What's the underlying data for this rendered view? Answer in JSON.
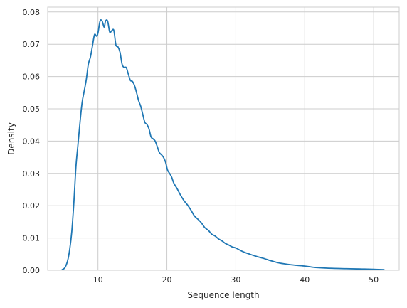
{
  "chart_data": {
    "type": "line",
    "title": "",
    "xlabel": "Sequence length",
    "ylabel": "Density",
    "xlim": [
      2.7,
      53.7
    ],
    "ylim": [
      0,
      0.0815
    ],
    "x_ticks": [
      10,
      20,
      30,
      40,
      50
    ],
    "x_tick_labels": [
      "10",
      "20",
      "30",
      "40",
      "50"
    ],
    "y_ticks": [
      0.0,
      0.01,
      0.02,
      0.03,
      0.04,
      0.05,
      0.06,
      0.07,
      0.08
    ],
    "y_tick_labels": [
      "0.00",
      "0.01",
      "0.02",
      "0.03",
      "0.04",
      "0.05",
      "0.06",
      "0.07",
      "0.08"
    ],
    "grid": true,
    "line_color": "#1f77b4",
    "grid_color": "#cccccc",
    "series": [
      {
        "x": [
          4.8,
          5.2,
          5.6,
          5.9,
          6.2,
          6.5,
          6.8,
          7.1,
          7.4,
          7.7,
          8.0,
          8.3,
          8.6,
          8.9,
          9.2,
          9.5,
          9.8,
          10.0,
          10.3,
          10.6,
          10.9,
          11.1,
          11.4,
          11.7,
          12.0,
          12.3,
          12.6,
          12.9,
          13.2,
          13.5,
          13.8,
          14.1,
          14.4,
          14.7,
          15.0,
          15.3,
          15.6,
          15.9,
          16.2,
          16.5,
          16.8,
          17.1,
          17.4,
          17.7,
          18.0,
          18.3,
          18.6,
          18.9,
          19.2,
          19.5,
          19.8,
          20.1,
          20.4,
          20.7,
          21.0,
          21.5,
          22.0,
          22.5,
          23.0,
          23.5,
          24.0,
          24.5,
          25.0,
          25.5,
          26.0,
          26.5,
          27.0,
          27.5,
          28.0,
          28.5,
          29.0,
          29.5,
          30.0,
          31.0,
          32.0,
          33.0,
          34.0,
          35.0,
          36.0,
          37.0,
          38.0,
          39.0,
          40.0,
          41.0,
          42.0,
          44.0,
          46.0,
          48.0,
          50.0,
          51.5
        ],
        "y": [
          0.0002,
          0.0008,
          0.003,
          0.0065,
          0.012,
          0.021,
          0.032,
          0.039,
          0.046,
          0.052,
          0.0555,
          0.059,
          0.0638,
          0.066,
          0.0695,
          0.073,
          0.0725,
          0.0735,
          0.0772,
          0.0772,
          0.0753,
          0.0772,
          0.0772,
          0.0738,
          0.0742,
          0.0743,
          0.0698,
          0.0692,
          0.0675,
          0.0638,
          0.0628,
          0.0628,
          0.0608,
          0.0588,
          0.0585,
          0.0572,
          0.055,
          0.0525,
          0.0508,
          0.0483,
          0.0458,
          0.0452,
          0.0438,
          0.0413,
          0.0407,
          0.04,
          0.0383,
          0.0365,
          0.0358,
          0.035,
          0.0335,
          0.031,
          0.03,
          0.0288,
          0.027,
          0.0252,
          0.0232,
          0.0215,
          0.0202,
          0.0186,
          0.0168,
          0.0158,
          0.0147,
          0.0132,
          0.0124,
          0.0112,
          0.0106,
          0.0097,
          0.0091,
          0.0083,
          0.0078,
          0.0072,
          0.0069,
          0.0058,
          0.005,
          0.0043,
          0.0037,
          0.003,
          0.0024,
          0.002,
          0.0017,
          0.0015,
          0.0013,
          0.001,
          0.0008,
          0.0006,
          0.0005,
          0.0004,
          0.0003,
          0.0002
        ]
      }
    ]
  }
}
